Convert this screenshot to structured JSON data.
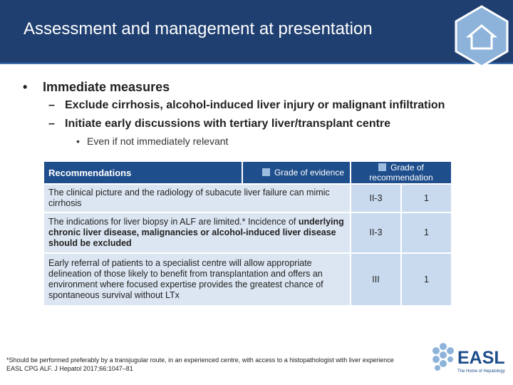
{
  "header": {
    "title": "Assessment and management at presentation"
  },
  "bullets": {
    "main": "Immediate measures",
    "sub": [
      "Exclude cirrhosis, alcohol-induced liver injury or malignant infiltration",
      "Initiate early discussions with tertiary liver/transplant centre"
    ],
    "subsub": "Even if not immediately relevant"
  },
  "table": {
    "header": {
      "recommendations": "Recommendations",
      "evidence": "Grade of evidence",
      "recommendation": "Grade of recommendation"
    },
    "rows": [
      {
        "text": "The clinical picture and the radiology of subacute liver failure can mimic cirrhosis",
        "evidence": "II-3",
        "recommendation": "1"
      },
      {
        "text": "The indications for liver biopsy in ALF are limited.* Incidence of ",
        "bold": "underlying chronic liver disease, malignancies or alcohol-induced liver disease should be excluded",
        "evidence": "II-3",
        "recommendation": "1"
      },
      {
        "text": "Early referral of patients to a specialist centre will allow appropriate delineation of those likely to benefit from transplantation and offers an environment where focused expertise provides the greatest chance of spontaneous survival without LTx",
        "evidence": "III",
        "recommendation": "1"
      }
    ]
  },
  "footnote": [
    "*Should be performed preferably by a transjugular route, in an experienced centre, with access to a histopathologist with liver experience",
    "EASL CPG ALF. J Hepatol 2017;66:1047–81"
  ],
  "logo": {
    "name": "EASL",
    "tagline": "The Home of Hepatology"
  }
}
